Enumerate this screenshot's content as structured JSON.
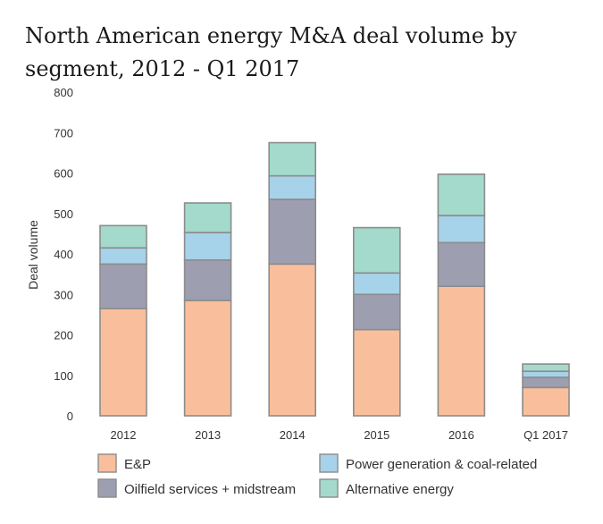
{
  "chart_data": {
    "type": "bar",
    "stacked": true,
    "title": "North American energy M&A deal volume by segment, 2012 - Q1 2017",
    "xlabel": "",
    "ylabel": "Deal volume",
    "ylim": [
      0,
      800
    ],
    "yticks": [
      0,
      100,
      200,
      300,
      400,
      500,
      600,
      700,
      800
    ],
    "grid": false,
    "categories": [
      "2012",
      "2013",
      "2014",
      "2015",
      "2016",
      "Q1 2017"
    ],
    "series": [
      {
        "name": "E&P",
        "color": "#f9bf9c",
        "values": [
          265,
          285,
          375,
          213,
          320,
          70
        ]
      },
      {
        "name": "Oilfield services + midstream",
        "color": "#9e9eb1",
        "values": [
          110,
          100,
          160,
          87,
          108,
          25
        ]
      },
      {
        "name": "Power generation & coal-related",
        "color": "#a6d2ea",
        "values": [
          40,
          68,
          58,
          53,
          67,
          15
        ]
      },
      {
        "name": "Alternative energy",
        "color": "#a3dacb",
        "values": [
          55,
          73,
          82,
          112,
          102,
          18
        ]
      }
    ],
    "legend_position": "bottom"
  }
}
